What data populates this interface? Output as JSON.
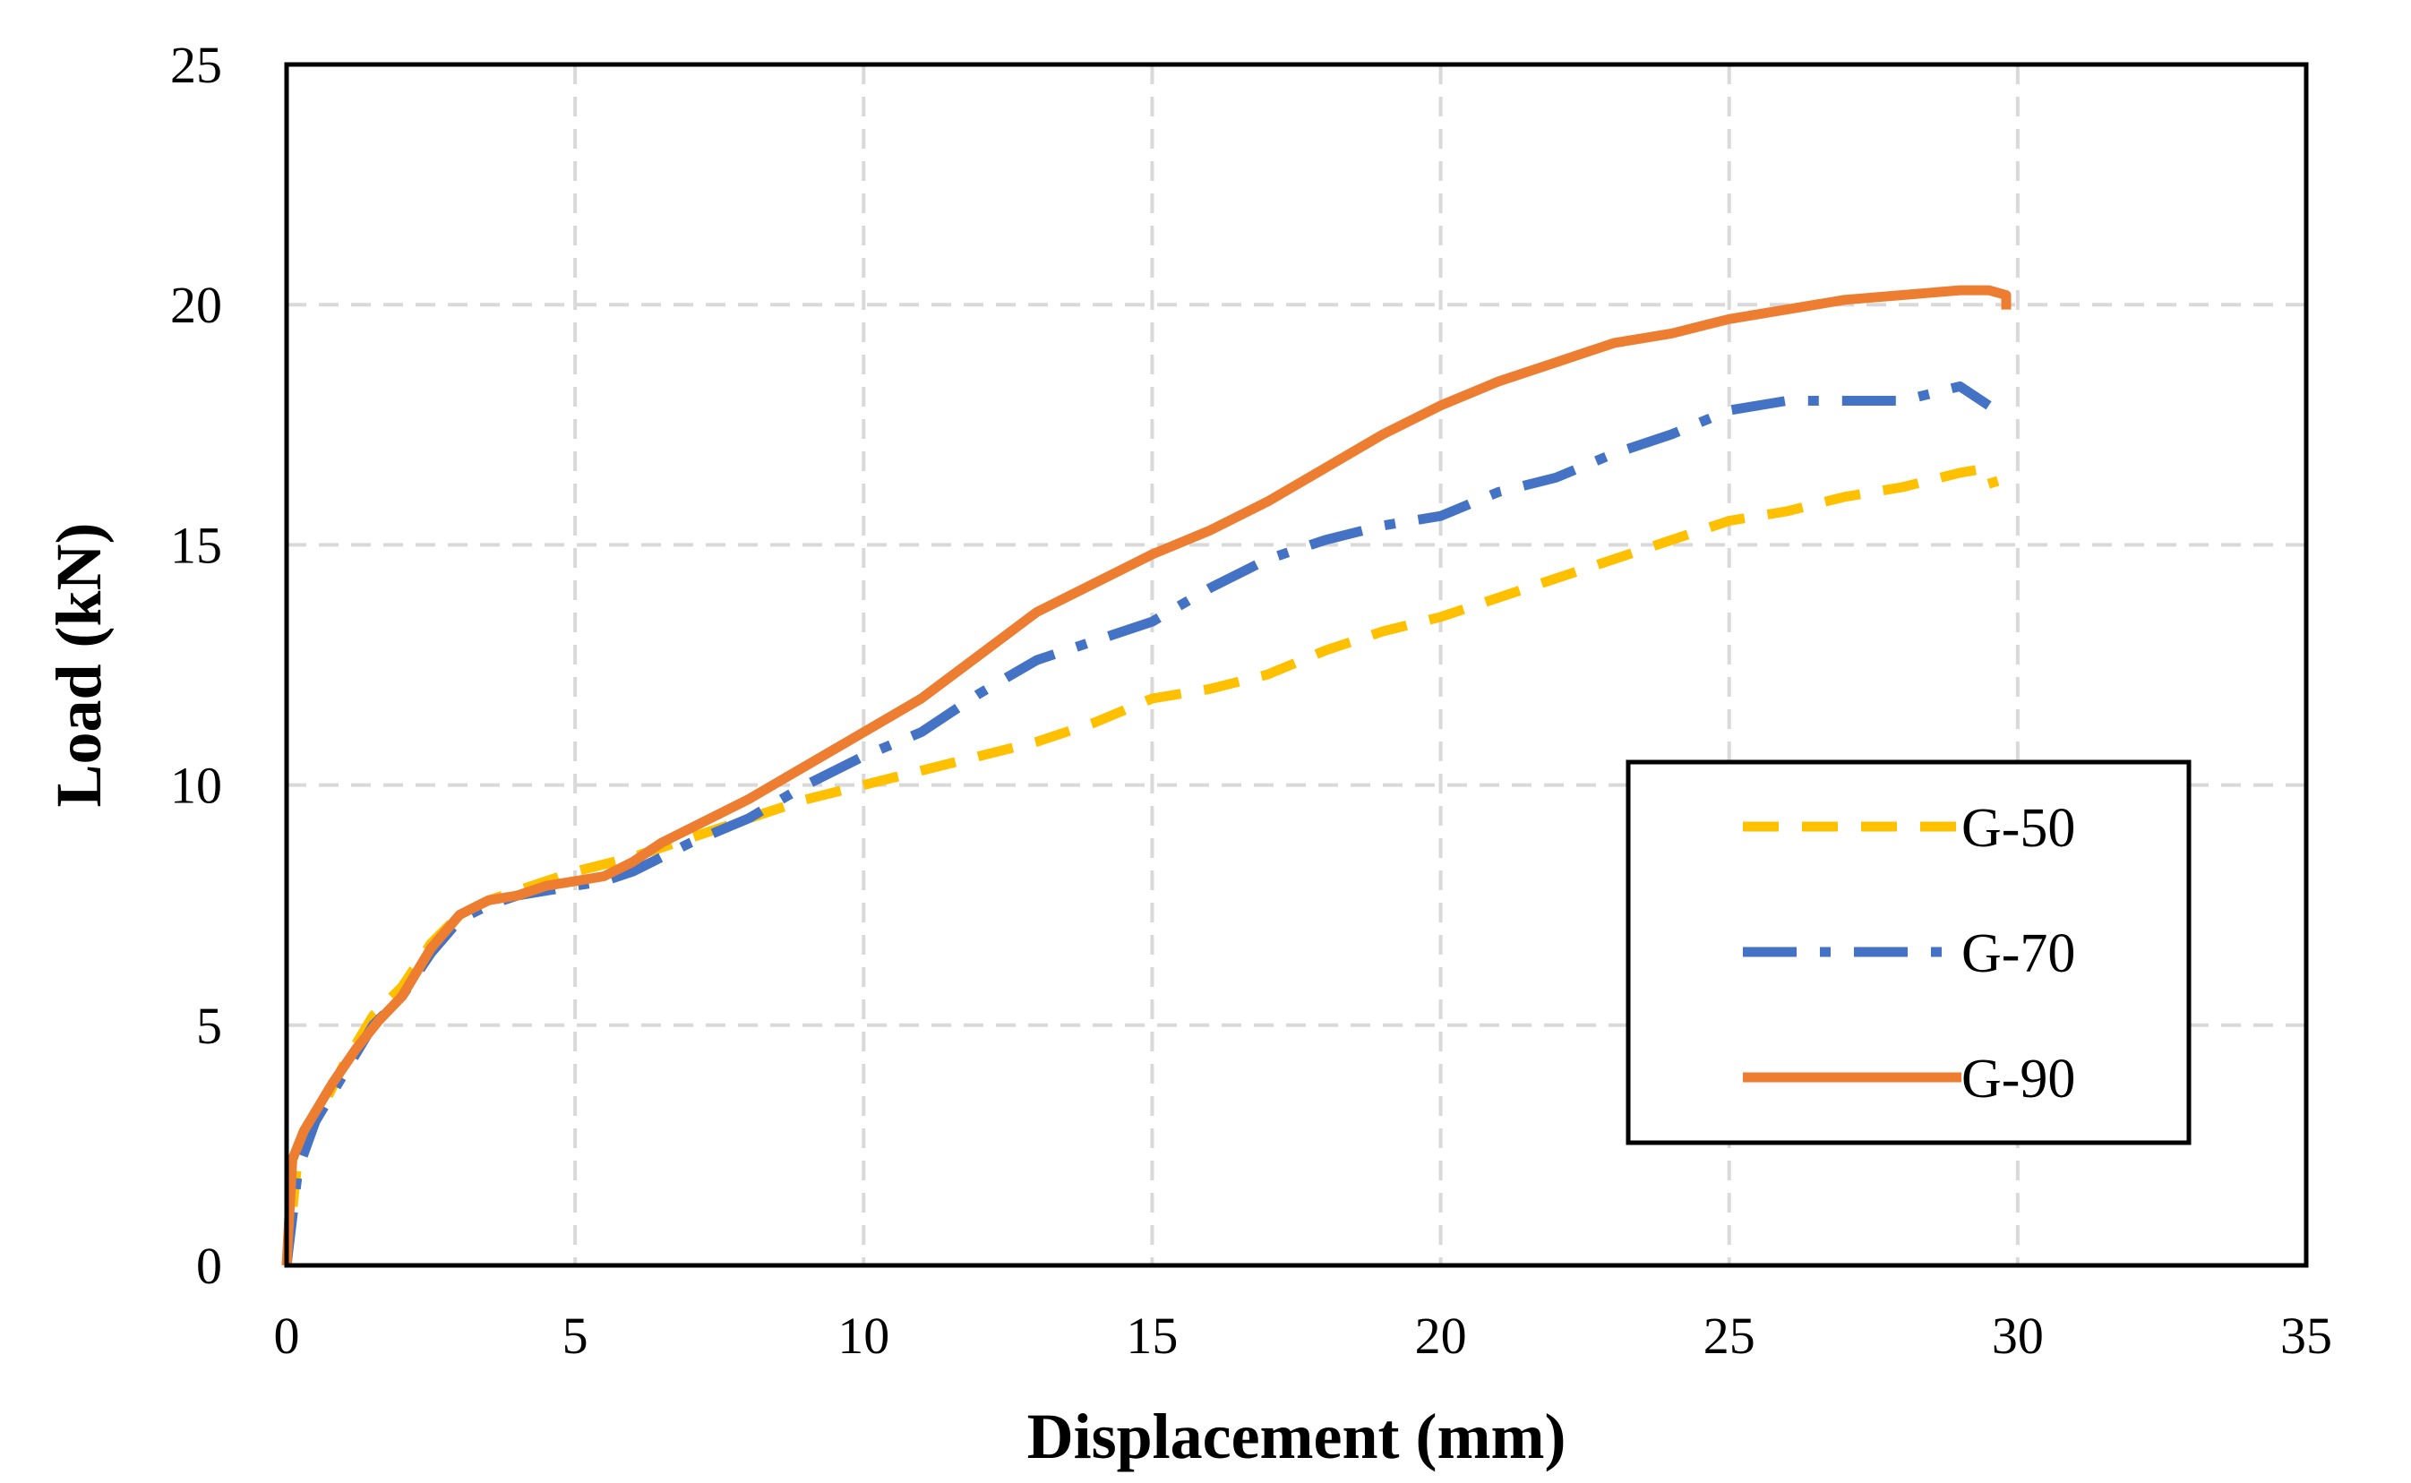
{
  "chart_data": {
    "type": "line",
    "title": "",
    "xlabel": "Displacement (mm)",
    "ylabel": "Load (kN)",
    "xlim": [
      0,
      35
    ],
    "ylim": [
      0,
      25
    ],
    "xticks": [
      0,
      5,
      10,
      15,
      20,
      25,
      30,
      35
    ],
    "yticks": [
      0,
      5,
      10,
      15,
      20,
      25
    ],
    "grid": true,
    "legend_position": "right",
    "series": [
      {
        "name": "G-50",
        "color": "#FFC000",
        "dash": "dashed",
        "x": [
          0,
          0.2,
          0.5,
          1.0,
          1.5,
          2.0,
          2.5,
          3.0,
          3.5,
          4.0,
          4.5,
          5.0,
          6.0,
          7.0,
          8.0,
          9.0,
          10.0,
          11.0,
          12.0,
          13.0,
          14.0,
          15.0,
          16.0,
          17.0,
          18.0,
          19.0,
          20.0,
          21.0,
          22.0,
          23.0,
          24.0,
          25.0,
          26.0,
          27.0,
          28.0,
          29.0,
          29.5,
          29.6
        ],
        "y": [
          0,
          2.3,
          3.0,
          4.2,
          5.2,
          5.8,
          6.7,
          7.3,
          7.6,
          7.8,
          8.0,
          8.2,
          8.5,
          8.9,
          9.3,
          9.7,
          10.0,
          10.3,
          10.6,
          10.9,
          11.3,
          11.8,
          12.0,
          12.3,
          12.8,
          13.2,
          13.5,
          13.9,
          14.3,
          14.7,
          15.1,
          15.5,
          15.7,
          16.0,
          16.2,
          16.5,
          16.6,
          16.2
        ]
      },
      {
        "name": "G-70",
        "color": "#4472C4",
        "dash": "dash-dot",
        "x": [
          0,
          0.2,
          0.5,
          1.0,
          1.5,
          2.0,
          2.5,
          3.0,
          3.5,
          4.0,
          4.5,
          5.0,
          5.5,
          6.0,
          7.0,
          8.0,
          9.0,
          10.0,
          11.0,
          12.0,
          13.0,
          14.0,
          15.0,
          16.0,
          17.0,
          18.0,
          19.0,
          20.0,
          21.0,
          22.0,
          23.0,
          24.0,
          25.0,
          26.0,
          27.0,
          28.0,
          29.0,
          29.5
        ],
        "y": [
          0,
          2.0,
          3.0,
          4.0,
          5.0,
          5.6,
          6.5,
          7.2,
          7.5,
          7.7,
          7.8,
          7.9,
          8.0,
          8.2,
          8.8,
          9.3,
          10.0,
          10.6,
          11.1,
          11.9,
          12.6,
          13.0,
          13.4,
          14.1,
          14.7,
          15.1,
          15.4,
          15.6,
          16.1,
          16.4,
          16.9,
          17.3,
          17.8,
          18.0,
          18.0,
          18.0,
          18.3,
          17.9
        ]
      },
      {
        "name": "G-90",
        "color": "#ED7D31",
        "dash": "solid",
        "x": [
          0,
          0.1,
          0.3,
          0.8,
          1.2,
          1.6,
          2.0,
          2.5,
          3.0,
          3.5,
          4.0,
          4.5,
          5.0,
          5.5,
          6.0,
          6.5,
          7.0,
          8.0,
          9.0,
          10.0,
          11.0,
          12.0,
          13.0,
          14.0,
          15.0,
          16.0,
          17.0,
          18.0,
          19.0,
          20.0,
          21.0,
          22.0,
          23.0,
          24.0,
          25.0,
          26.0,
          27.0,
          28.0,
          29.0,
          29.5,
          29.8,
          29.8
        ],
        "y": [
          0,
          2.2,
          2.8,
          3.8,
          4.5,
          5.1,
          5.6,
          6.6,
          7.3,
          7.6,
          7.7,
          7.9,
          8.0,
          8.1,
          8.4,
          8.8,
          9.1,
          9.7,
          10.4,
          11.1,
          11.8,
          12.7,
          13.6,
          14.2,
          14.8,
          15.3,
          15.9,
          16.6,
          17.3,
          17.9,
          18.4,
          18.8,
          19.2,
          19.4,
          19.7,
          19.9,
          20.1,
          20.2,
          20.3,
          20.3,
          20.2,
          19.9
        ]
      }
    ]
  }
}
